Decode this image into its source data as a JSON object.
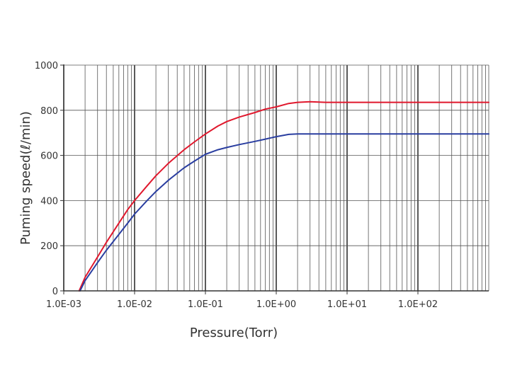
{
  "chart_data": {
    "type": "line",
    "title": "",
    "xlabel": "Pressure(Torr)",
    "ylabel": "Puming speed(ℓ/min)",
    "x_scale": "log",
    "xlim": [
      0.001,
      1000
    ],
    "ylim": [
      0,
      1000
    ],
    "x_ticks": [
      "1.0E-03",
      "1.0E-02",
      "1.0E-01",
      "1.0E+00",
      "1.0E+01",
      "1.0E+02"
    ],
    "y_ticks": [
      "0",
      "200",
      "400",
      "600",
      "800",
      "1000"
    ],
    "grid": true,
    "series": [
      {
        "color": "#e0182d",
        "x": [
          0.00165,
          0.002,
          0.003,
          0.004,
          0.006,
          0.008,
          0.01,
          0.015,
          0.02,
          0.03,
          0.05,
          0.07,
          0.1,
          0.15,
          0.2,
          0.3,
          0.5,
          0.7,
          1.0,
          1.5,
          2.0,
          3.0,
          5.0,
          10,
          100,
          1000
        ],
        "y": [
          0,
          60,
          150,
          215,
          300,
          360,
          400,
          465,
          510,
          565,
          625,
          660,
          695,
          730,
          750,
          770,
          790,
          805,
          815,
          830,
          835,
          838,
          835,
          835,
          835,
          835
        ]
      },
      {
        "color": "#2a3ea0",
        "x": [
          0.0017,
          0.002,
          0.003,
          0.004,
          0.006,
          0.008,
          0.01,
          0.015,
          0.02,
          0.03,
          0.05,
          0.07,
          0.1,
          0.15,
          0.2,
          0.3,
          0.5,
          0.7,
          1.0,
          1.5,
          2.0,
          3.0,
          5.0,
          10,
          100,
          1000
        ],
        "y": [
          0,
          45,
          125,
          180,
          250,
          300,
          340,
          400,
          440,
          490,
          545,
          575,
          605,
          625,
          635,
          648,
          662,
          672,
          683,
          693,
          695,
          695,
          695,
          695,
          695,
          695
        ]
      }
    ]
  },
  "colors": {
    "grid": "#555555",
    "major_grid": "#000000",
    "axis": "#333333",
    "background": "#ffffff"
  }
}
